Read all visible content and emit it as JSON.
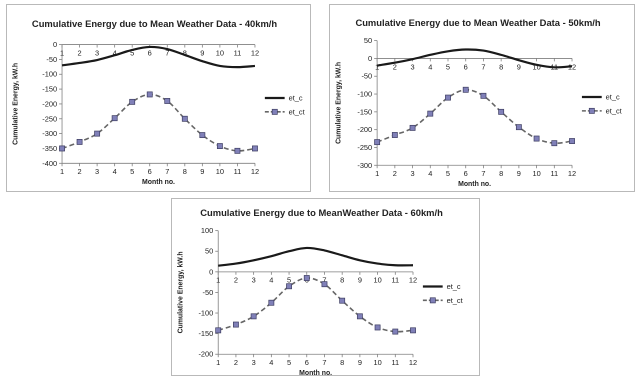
{
  "chart_data": [
    {
      "type": "line",
      "title": "Cumulative Energy due to Mean Weather Data - 40km/h",
      "xlabel": "Month no.",
      "ylabel": "Cumulative Energy, kW.h",
      "x": [
        1,
        2,
        3,
        4,
        5,
        6,
        7,
        8,
        9,
        10,
        11,
        12
      ],
      "ylim": [
        -400,
        0
      ],
      "yticks": [
        0,
        -50,
        -100,
        -150,
        -200,
        -250,
        -300,
        -350,
        -400
      ],
      "legend_position": "right",
      "series": [
        {
          "name": "et_c",
          "values": [
            -70,
            -62,
            -52,
            -36,
            -18,
            -8,
            -15,
            -35,
            -56,
            -72,
            -76,
            -72
          ]
        },
        {
          "name": "et_ct",
          "values": [
            -350,
            -328,
            -300,
            -248,
            -193,
            -168,
            -190,
            -250,
            -305,
            -342,
            -358,
            -350
          ]
        }
      ]
    },
    {
      "type": "line",
      "title": "Cumulative Energy due to Mean Weather Data - 50km/h",
      "xlabel": "Month no.",
      "ylabel": "Cumulative Energy, kW.h",
      "x": [
        1,
        2,
        3,
        4,
        5,
        6,
        7,
        8,
        9,
        10,
        11,
        12
      ],
      "ylim": [
        -300,
        50
      ],
      "yticks": [
        50,
        0,
        -50,
        -100,
        -150,
        -200,
        -250,
        -300
      ],
      "legend_position": "right",
      "series": [
        {
          "name": "et_c",
          "values": [
            -20,
            -12,
            -2,
            10,
            20,
            25,
            22,
            10,
            -5,
            -18,
            -25,
            -22
          ]
        },
        {
          "name": "et_ct",
          "values": [
            -235,
            -215,
            -195,
            -155,
            -110,
            -88,
            -105,
            -150,
            -193,
            -225,
            -238,
            -232
          ]
        }
      ]
    },
    {
      "type": "line",
      "title": "Cumulative Energy due to MeanWeather Data - 60km/h",
      "xlabel": "Month no.",
      "ylabel": "Cumulative Energy, kW.h",
      "x": [
        1,
        2,
        3,
        4,
        5,
        6,
        7,
        8,
        9,
        10,
        11,
        12
      ],
      "ylim": [
        -200,
        100
      ],
      "yticks": [
        100,
        50,
        0,
        -50,
        -100,
        -150,
        -200
      ],
      "legend_position": "right",
      "series": [
        {
          "name": "et_c",
          "values": [
            15,
            20,
            28,
            38,
            50,
            58,
            52,
            40,
            28,
            20,
            16,
            16
          ]
        },
        {
          "name": "et_ct",
          "values": [
            -142,
            -128,
            -108,
            -75,
            -35,
            -15,
            -30,
            -70,
            -108,
            -135,
            -145,
            -142
          ]
        }
      ]
    }
  ],
  "colors": {
    "et_c": "#1a1a1a",
    "et_ct_line": "#666666",
    "et_ct_marker_fill": "#8080b8",
    "et_ct_marker_stroke": "#3c3c60",
    "border": "#b9b9b9"
  }
}
